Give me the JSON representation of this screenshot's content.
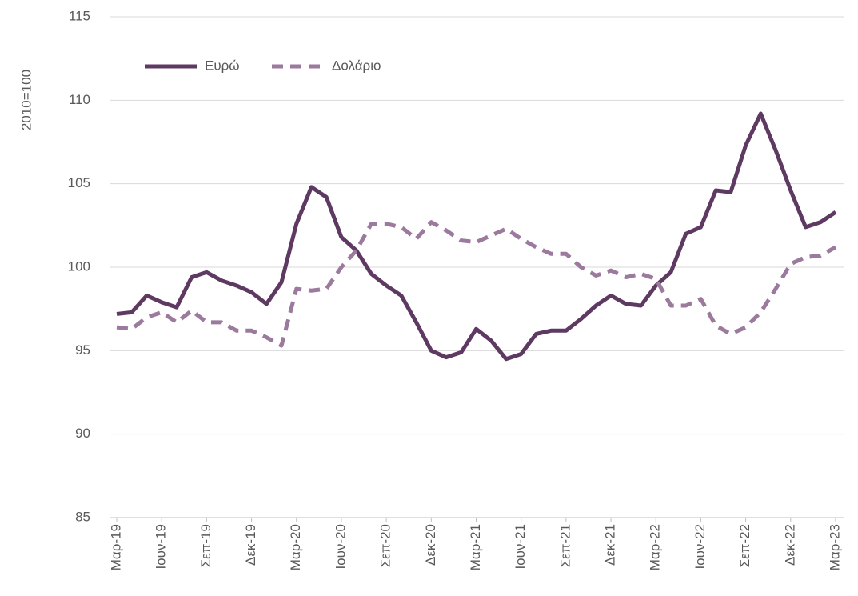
{
  "chart_data": {
    "type": "line",
    "ylabel": "2010=100",
    "categories": [
      "Μαρ-19",
      null,
      null,
      "Ιουν-19",
      null,
      null,
      "Σεπ-19",
      null,
      null,
      "Δεκ-19",
      null,
      null,
      "Μαρ-20",
      null,
      null,
      "Ιουν-20",
      null,
      null,
      "Σεπ-20",
      null,
      null,
      "Δεκ-20",
      null,
      null,
      "Μαρ-21",
      null,
      null,
      "Ιουν-21",
      null,
      null,
      "Σεπ-21",
      null,
      null,
      "Δεκ-21",
      null,
      null,
      "Μαρ-22",
      null,
      null,
      "Ιουν-22",
      null,
      null,
      "Σεπ-22",
      null,
      null,
      "Δεκ-22",
      null,
      null,
      "Μαρ-23"
    ],
    "series": [
      {
        "name": "Ευρώ",
        "color": "#5e3a63",
        "dash": false,
        "values": [
          97.2,
          97.3,
          98.3,
          97.9,
          97.6,
          99.4,
          99.7,
          99.2,
          98.9,
          98.5,
          97.8,
          99.1,
          102.6,
          104.8,
          104.2,
          101.8,
          101.0,
          99.6,
          98.9,
          98.3,
          96.7,
          95.0,
          94.6,
          94.9,
          96.3,
          95.6,
          94.5,
          94.8,
          96.0,
          96.2,
          96.2,
          96.9,
          97.7,
          98.3,
          97.8,
          97.7,
          98.9,
          99.7,
          102.0,
          102.4,
          104.6,
          104.5,
          107.3,
          109.2,
          107.0,
          104.6,
          102.4,
          102.7,
          103.3
        ]
      },
      {
        "name": "Δολάριο",
        "color": "#9b7a9e",
        "dash": true,
        "values": [
          96.4,
          96.3,
          97.0,
          97.3,
          96.7,
          97.4,
          96.7,
          96.7,
          96.2,
          96.2,
          95.8,
          95.3,
          98.7,
          98.6,
          98.7,
          100.0,
          101.0,
          102.6,
          102.6,
          102.4,
          101.7,
          102.7,
          102.2,
          101.6,
          101.5,
          101.9,
          102.3,
          101.7,
          101.2,
          100.8,
          100.8,
          100.0,
          99.5,
          99.8,
          99.4,
          99.6,
          99.3,
          97.7,
          97.7,
          98.1,
          96.5,
          96.0,
          96.4,
          97.3,
          98.7,
          100.2,
          100.6,
          100.7,
          101.2
        ]
      }
    ],
    "ylim": [
      85,
      115
    ],
    "yticks": [
      85,
      90,
      95,
      100,
      105,
      110,
      115
    ],
    "grid": true,
    "legend": "top-left"
  }
}
